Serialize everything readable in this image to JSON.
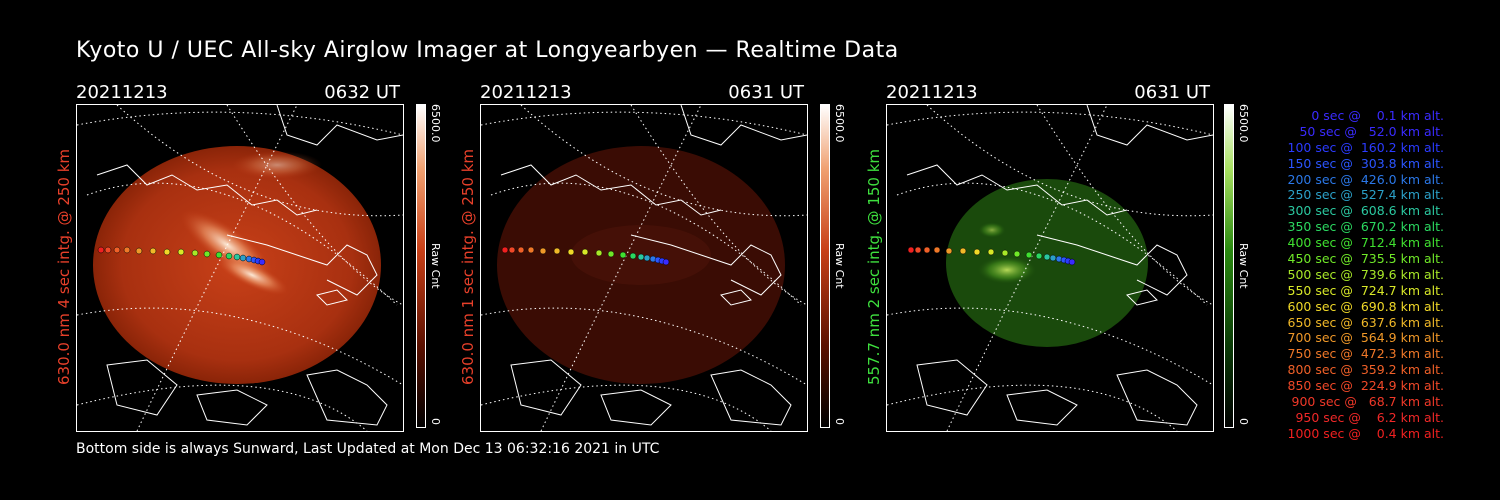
{
  "title": "Kyoto U / UEC All-sky Airglow Imager at Longyearbyen — Realtime Data",
  "panels": [
    {
      "date": "20211213",
      "time": "0632 UT",
      "ylabel": "630.0 nm 4 sec intg. @ 250 km",
      "label_color": "#e8402a",
      "cbar_max": "6500.0",
      "cbar_unit": "Raw Cnt",
      "cbar_min": "0",
      "colormap": "red"
    },
    {
      "date": "20211213",
      "time": "0631 UT",
      "ylabel": "630.0 nm 1 sec intg. @ 250 km",
      "label_color": "#e8402a",
      "cbar_max": "6500.0",
      "cbar_unit": "Raw Cnt",
      "cbar_min": "0",
      "colormap": "red"
    },
    {
      "date": "20211213",
      "time": "0631 UT",
      "ylabel": "557.7 nm 2 sec intg. @ 150 km",
      "label_color": "#3ee03e",
      "cbar_max": "6500.0",
      "cbar_unit": "Raw Cnt",
      "cbar_min": "0",
      "colormap": "green"
    }
  ],
  "footer": "Bottom side is always Sunward, Last Updated at Mon Dec 13 06:32:16 2021 in UTC",
  "legend": [
    {
      "text": "   0 sec @    0.1 km alt.",
      "color": "#3a2bff"
    },
    {
      "text": "  50 sec @   52.0 km alt.",
      "color": "#3a2bff"
    },
    {
      "text": " 100 sec @  160.2 km alt.",
      "color": "#2b3bff"
    },
    {
      "text": " 150 sec @  303.8 km alt.",
      "color": "#2b55ff"
    },
    {
      "text": " 200 sec @  426.0 km alt.",
      "color": "#2b78e8"
    },
    {
      "text": " 250 sec @  527.4 km alt.",
      "color": "#2ba0c8"
    },
    {
      "text": " 300 sec @  608.6 km alt.",
      "color": "#2bc8a0"
    },
    {
      "text": " 350 sec @  670.2 km alt.",
      "color": "#2bd860"
    },
    {
      "text": " 400 sec @  712.4 km alt.",
      "color": "#40e030"
    },
    {
      "text": " 450 sec @  735.5 km alt.",
      "color": "#70e828"
    },
    {
      "text": " 500 sec @  739.6 km alt.",
      "color": "#a8e828"
    },
    {
      "text": " 550 sec @  724.7 km alt.",
      "color": "#d8e828"
    },
    {
      "text": " 600 sec @  690.8 km alt.",
      "color": "#f0d828"
    },
    {
      "text": " 650 sec @  637.6 km alt.",
      "color": "#f0b828"
    },
    {
      "text": " 700 sec @  564.9 km alt.",
      "color": "#f09828"
    },
    {
      "text": " 750 sec @  472.3 km alt.",
      "color": "#f07828"
    },
    {
      "text": " 800 sec @  359.2 km alt.",
      "color": "#f06028"
    },
    {
      "text": " 850 sec @  224.9 km alt.",
      "color": "#f04828"
    },
    {
      "text": " 900 sec @   68.7 km alt.",
      "color": "#f03828"
    },
    {
      "text": " 950 sec @    6.2 km alt.",
      "color": "#f02828"
    },
    {
      "text": "1000 sec @    0.4 km alt.",
      "color": "#f02020"
    }
  ]
}
